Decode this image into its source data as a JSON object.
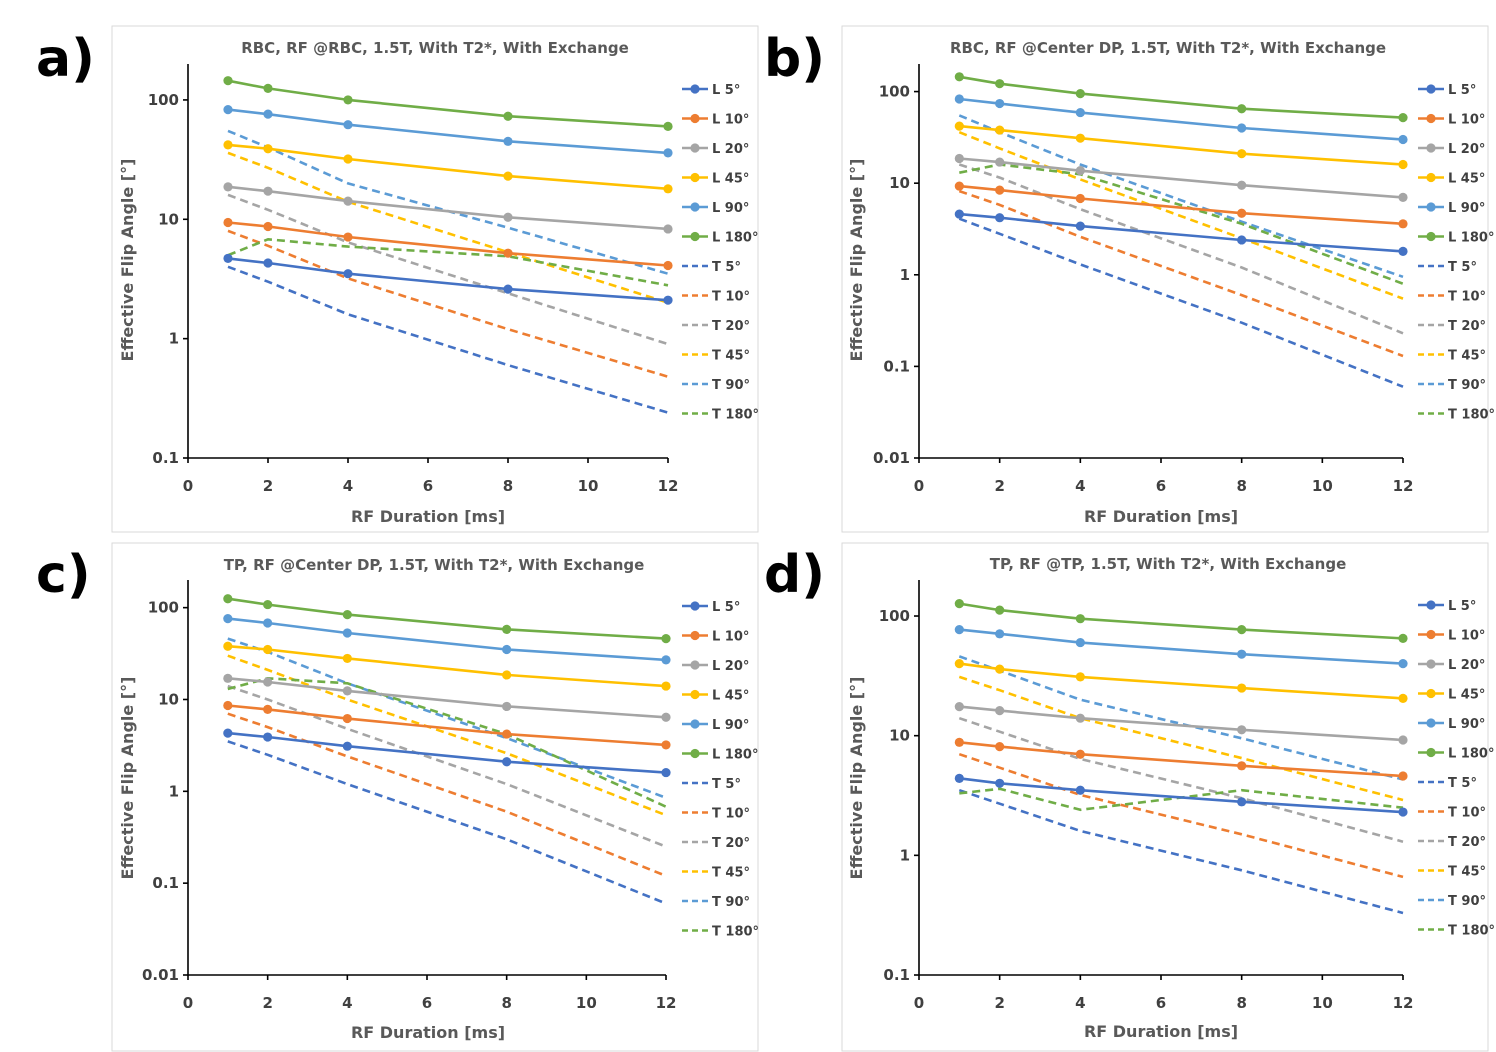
{
  "chart_data": [
    {
      "panel": "a)",
      "type": "line",
      "title": "RBC, RF @RBC, 1.5T, With T2*, With Exchange",
      "xlabel": "RF Duration [ms]",
      "ylabel": "Effective Flip Angle [°]",
      "xlim": [
        0,
        12
      ],
      "xticks": [
        0,
        2,
        4,
        6,
        8,
        10,
        12
      ],
      "ylim": [
        0.1,
        200
      ],
      "yscale": "log",
      "yticks": [
        0.1,
        1,
        10,
        100
      ],
      "ytick_labels": [
        "0.1",
        "1",
        "10",
        "100"
      ],
      "x": [
        1,
        2,
        4,
        8,
        12
      ],
      "series": [
        {
          "name": "L 5°",
          "color": "#4472C4",
          "dash": false,
          "marker": true,
          "values": [
            4.7,
            4.3,
            3.5,
            2.6,
            2.1
          ]
        },
        {
          "name": "L 10°",
          "color": "#ED7D31",
          "dash": false,
          "marker": true,
          "values": [
            9.4,
            8.7,
            7.1,
            5.2,
            4.1
          ]
        },
        {
          "name": "L 20°",
          "color": "#A5A5A5",
          "dash": false,
          "marker": true,
          "values": [
            18.7,
            17.2,
            14.2,
            10.4,
            8.3
          ]
        },
        {
          "name": "L 45°",
          "color": "#FFC000",
          "dash": false,
          "marker": true,
          "values": [
            42,
            39,
            32,
            23,
            18
          ]
        },
        {
          "name": "L 90°",
          "color": "#5B9BD5",
          "dash": false,
          "marker": true,
          "values": [
            83,
            76,
            62,
            45,
            36
          ]
        },
        {
          "name": "L 180°",
          "color": "#70AD47",
          "dash": false,
          "marker": true,
          "values": [
            145,
            125,
            100,
            73,
            60
          ]
        },
        {
          "name": "T 5°",
          "color": "#4472C4",
          "dash": true,
          "marker": false,
          "values": [
            4.0,
            3.0,
            1.6,
            0.6,
            0.24
          ]
        },
        {
          "name": "T 10°",
          "color": "#ED7D31",
          "dash": true,
          "marker": false,
          "values": [
            8.0,
            6.0,
            3.2,
            1.2,
            0.48
          ]
        },
        {
          "name": "T 20°",
          "color": "#A5A5A5",
          "dash": true,
          "marker": false,
          "values": [
            16,
            12,
            6.4,
            2.4,
            0.9
          ]
        },
        {
          "name": "T 45°",
          "color": "#FFC000",
          "dash": true,
          "marker": false,
          "values": [
            36,
            27,
            14,
            5.3,
            2.0
          ]
        },
        {
          "name": "T 90°",
          "color": "#5B9BD5",
          "dash": true,
          "marker": false,
          "values": [
            55,
            40,
            20,
            8.5,
            3.5
          ]
        },
        {
          "name": "T 180°",
          "color": "#70AD47",
          "dash": true,
          "marker": false,
          "values": [
            5.0,
            6.8,
            5.9,
            4.9,
            2.8
          ]
        }
      ]
    },
    {
      "panel": "b)",
      "type": "line",
      "title": "RBC, RF @Center DP, 1.5T, With T2*, With Exchange",
      "xlabel": "RF Duration [ms]",
      "ylabel": "Effective Flip Angle [°]",
      "xlim": [
        0,
        12
      ],
      "xticks": [
        0,
        2,
        4,
        6,
        8,
        10,
        12
      ],
      "ylim": [
        0.01,
        200
      ],
      "yscale": "log",
      "yticks": [
        0.01,
        0.1,
        1,
        10,
        100
      ],
      "ytick_labels": [
        "0.01",
        "0.1",
        "1",
        "10",
        "100"
      ],
      "x": [
        1,
        2,
        4,
        8,
        12
      ],
      "series": [
        {
          "name": "L 5°",
          "color": "#4472C4",
          "dash": false,
          "marker": true,
          "values": [
            4.6,
            4.2,
            3.4,
            2.4,
            1.8
          ]
        },
        {
          "name": "L 10°",
          "color": "#ED7D31",
          "dash": false,
          "marker": true,
          "values": [
            9.3,
            8.4,
            6.8,
            4.7,
            3.6
          ]
        },
        {
          "name": "L 20°",
          "color": "#A5A5A5",
          "dash": false,
          "marker": true,
          "values": [
            18.6,
            17,
            13.7,
            9.5,
            7
          ]
        },
        {
          "name": "L 45°",
          "color": "#FFC000",
          "dash": false,
          "marker": true,
          "values": [
            42,
            38,
            31,
            21,
            16
          ]
        },
        {
          "name": "L 90°",
          "color": "#5B9BD5",
          "dash": false,
          "marker": true,
          "values": [
            83,
            74,
            59,
            40,
            30
          ]
        },
        {
          "name": "L 180°",
          "color": "#70AD47",
          "dash": false,
          "marker": true,
          "values": [
            145,
            122,
            95,
            65,
            52
          ]
        },
        {
          "name": "T 5°",
          "color": "#4472C4",
          "dash": true,
          "marker": false,
          "values": [
            4.1,
            2.8,
            1.3,
            0.3,
            0.06
          ]
        },
        {
          "name": "T 10°",
          "color": "#ED7D31",
          "dash": true,
          "marker": false,
          "values": [
            8.2,
            5.8,
            2.6,
            0.6,
            0.13
          ]
        },
        {
          "name": "T 20°",
          "color": "#A5A5A5",
          "dash": true,
          "marker": false,
          "values": [
            16,
            11.5,
            5.2,
            1.2,
            0.23
          ]
        },
        {
          "name": "T 45°",
          "color": "#FFC000",
          "dash": true,
          "marker": false,
          "values": [
            36,
            24,
            11,
            2.5,
            0.55
          ]
        },
        {
          "name": "T 90°",
          "color": "#5B9BD5",
          "dash": true,
          "marker": false,
          "values": [
            55,
            36,
            16,
            3.8,
            0.95
          ]
        },
        {
          "name": "T 180°",
          "color": "#70AD47",
          "dash": true,
          "marker": false,
          "values": [
            13,
            16,
            12.5,
            3.6,
            0.8
          ]
        }
      ]
    },
    {
      "panel": "c)",
      "type": "line",
      "title": "TP, RF @Center DP, 1.5T, With T2*, With Exchange",
      "xlabel": "RF Duration [ms]",
      "ylabel": "Effective Flip Angle [°]",
      "xlim": [
        0,
        12
      ],
      "xticks": [
        0,
        2,
        4,
        6,
        8,
        10,
        12
      ],
      "ylim": [
        0.01,
        200
      ],
      "yscale": "log",
      "yticks": [
        0.01,
        0.1,
        1,
        10,
        100
      ],
      "ytick_labels": [
        "0.01",
        "0.1",
        "1",
        "10",
        "100"
      ],
      "x": [
        1,
        2,
        4,
        8,
        12
      ],
      "series": [
        {
          "name": "L 5°",
          "color": "#4472C4",
          "dash": false,
          "marker": true,
          "values": [
            4.3,
            3.9,
            3.1,
            2.1,
            1.6
          ]
        },
        {
          "name": "L 10°",
          "color": "#ED7D31",
          "dash": false,
          "marker": true,
          "values": [
            8.6,
            7.8,
            6.2,
            4.2,
            3.2
          ]
        },
        {
          "name": "L 20°",
          "color": "#A5A5A5",
          "dash": false,
          "marker": true,
          "values": [
            17,
            15.5,
            12.4,
            8.4,
            6.4
          ]
        },
        {
          "name": "L 45°",
          "color": "#FFC000",
          "dash": false,
          "marker": true,
          "values": [
            38,
            35,
            28,
            18.5,
            14
          ]
        },
        {
          "name": "L 90°",
          "color": "#5B9BD5",
          "dash": false,
          "marker": true,
          "values": [
            76,
            68,
            53,
            35,
            27
          ]
        },
        {
          "name": "L 180°",
          "color": "#70AD47",
          "dash": false,
          "marker": true,
          "values": [
            125,
            108,
            84,
            58,
            46
          ]
        },
        {
          "name": "T 5°",
          "color": "#4472C4",
          "dash": true,
          "marker": false,
          "values": [
            3.5,
            2.5,
            1.2,
            0.3,
            0.06
          ]
        },
        {
          "name": "T 10°",
          "color": "#ED7D31",
          "dash": true,
          "marker": false,
          "values": [
            7,
            5,
            2.4,
            0.6,
            0.12
          ]
        },
        {
          "name": "T 20°",
          "color": "#A5A5A5",
          "dash": true,
          "marker": false,
          "values": [
            14,
            10,
            4.8,
            1.2,
            0.25
          ]
        },
        {
          "name": "T 45°",
          "color": "#FFC000",
          "dash": true,
          "marker": false,
          "values": [
            30,
            21,
            10,
            2.6,
            0.55
          ]
        },
        {
          "name": "T 90°",
          "color": "#5B9BD5",
          "dash": true,
          "marker": false,
          "values": [
            46,
            33,
            15,
            3.8,
            0.85
          ]
        },
        {
          "name": "T 180°",
          "color": "#70AD47",
          "dash": true,
          "marker": false,
          "values": [
            13,
            17,
            15,
            4.2,
            0.68
          ]
        }
      ]
    },
    {
      "panel": "d)",
      "type": "line",
      "title": "TP, RF @TP, 1.5T, With T2*, With Exchange",
      "xlabel": "RF Duration [ms]",
      "ylabel": "Effective Flip Angle [°]",
      "xlim": [
        0,
        12
      ],
      "xticks": [
        0,
        2,
        4,
        6,
        8,
        10,
        12
      ],
      "ylim": [
        0.1,
        200
      ],
      "yscale": "log",
      "yticks": [
        0.1,
        1,
        10,
        100
      ],
      "ytick_labels": [
        "0.1",
        "1",
        "10",
        "100"
      ],
      "x": [
        1,
        2,
        4,
        8,
        12
      ],
      "series": [
        {
          "name": "L 5°",
          "color": "#4472C4",
          "dash": false,
          "marker": true,
          "values": [
            4.4,
            4.0,
            3.5,
            2.8,
            2.3
          ]
        },
        {
          "name": "L 10°",
          "color": "#ED7D31",
          "dash": false,
          "marker": true,
          "values": [
            8.8,
            8.1,
            7.0,
            5.6,
            4.6
          ]
        },
        {
          "name": "L 20°",
          "color": "#A5A5A5",
          "dash": false,
          "marker": true,
          "values": [
            17.5,
            16.2,
            14,
            11.2,
            9.2
          ]
        },
        {
          "name": "L 45°",
          "color": "#FFC000",
          "dash": false,
          "marker": true,
          "values": [
            40,
            36,
            31,
            25,
            20.5
          ]
        },
        {
          "name": "L 90°",
          "color": "#5B9BD5",
          "dash": false,
          "marker": true,
          "values": [
            77,
            71,
            60,
            48,
            40
          ]
        },
        {
          "name": "L 180°",
          "color": "#70AD47",
          "dash": false,
          "marker": true,
          "values": [
            127,
            112,
            95,
            77,
            65
          ]
        },
        {
          "name": "T 5°",
          "color": "#4472C4",
          "dash": true,
          "marker": false,
          "values": [
            3.5,
            2.7,
            1.6,
            0.75,
            0.33
          ]
        },
        {
          "name": "T 10°",
          "color": "#ED7D31",
          "dash": true,
          "marker": false,
          "values": [
            7,
            5.4,
            3.2,
            1.5,
            0.66
          ]
        },
        {
          "name": "T 20°",
          "color": "#A5A5A5",
          "dash": true,
          "marker": false,
          "values": [
            14,
            10.8,
            6.4,
            3,
            1.3
          ]
        },
        {
          "name": "T 45°",
          "color": "#FFC000",
          "dash": true,
          "marker": false,
          "values": [
            31,
            24,
            14,
            6.5,
            2.9
          ]
        },
        {
          "name": "T 90°",
          "color": "#5B9BD5",
          "dash": true,
          "marker": false,
          "values": [
            46,
            35,
            20,
            9.5,
            4.3
          ]
        },
        {
          "name": "T 180°",
          "color": "#70AD47",
          "dash": true,
          "marker": false,
          "values": [
            3.3,
            3.6,
            2.4,
            3.5,
            2.5
          ]
        }
      ]
    }
  ]
}
